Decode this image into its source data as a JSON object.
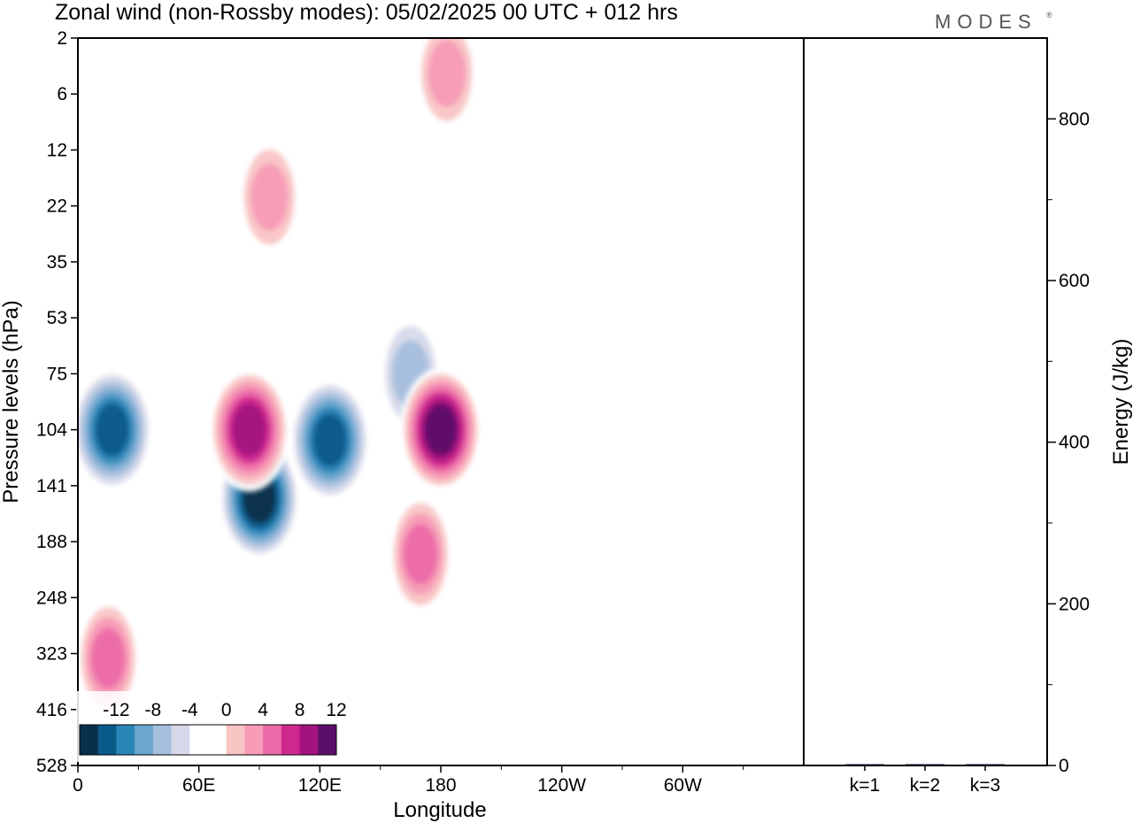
{
  "chart_data": [
    {
      "type": "heatmap",
      "title": "Zonal wind (non-Rossby modes):  05/02/2025  00 UTC  + 012 hrs",
      "xlabel": "Longitude",
      "ylabel": "Pressure levels (hPa)",
      "x_ticks": [
        "0",
        "60E",
        "120E",
        "180",
        "120W",
        "60W"
      ],
      "y_ticks": [
        "2",
        "6",
        "12",
        "22",
        "35",
        "53",
        "75",
        "104",
        "141",
        "188",
        "248",
        "323",
        "416",
        "528"
      ],
      "y_scale": "log",
      "colorbar": {
        "ticks": [
          "-12",
          "-8",
          "-4",
          "0",
          "4",
          "8",
          "12"
        ],
        "colors": [
          "#08304a",
          "#0a5a8a",
          "#2b86b8",
          "#6aa6cf",
          "#a5bfdd",
          "#d6d9ea",
          "#ffffff",
          "#ffffff",
          "#f9c4c4",
          "#f79bb6",
          "#ec6aa8",
          "#d0278f",
          "#a3137e",
          "#5c0f6a"
        ]
      },
      "features": [
        {
          "lon": 17,
          "p": 104,
          "value": -12
        },
        {
          "lon": 90,
          "p": 150,
          "value": -14
        },
        {
          "lon": 125,
          "p": 110,
          "value": -12
        },
        {
          "lon": 165,
          "p": 75,
          "value": -6
        },
        {
          "lon": 85,
          "p": 104,
          "value": 12
        },
        {
          "lon": 180,
          "p": 104,
          "value": 14
        },
        {
          "lon": 170,
          "p": 200,
          "value": 8
        },
        {
          "lon": 95,
          "p": 20,
          "value": 6
        },
        {
          "lon": 183,
          "p": 4,
          "value": 6
        },
        {
          "lon": 15,
          "p": 330,
          "value": 8
        }
      ]
    },
    {
      "type": "bar",
      "categories": [
        "k=1",
        "k=2",
        "k=3"
      ],
      "values": [
        1,
        1,
        1
      ],
      "ylabel": "Energy (J/kg)",
      "ylim": [
        0,
        900
      ],
      "y_ticks": [
        "0",
        "200",
        "400",
        "600",
        "800"
      ]
    }
  ],
  "brand": "MODES",
  "brand_mark": "®"
}
